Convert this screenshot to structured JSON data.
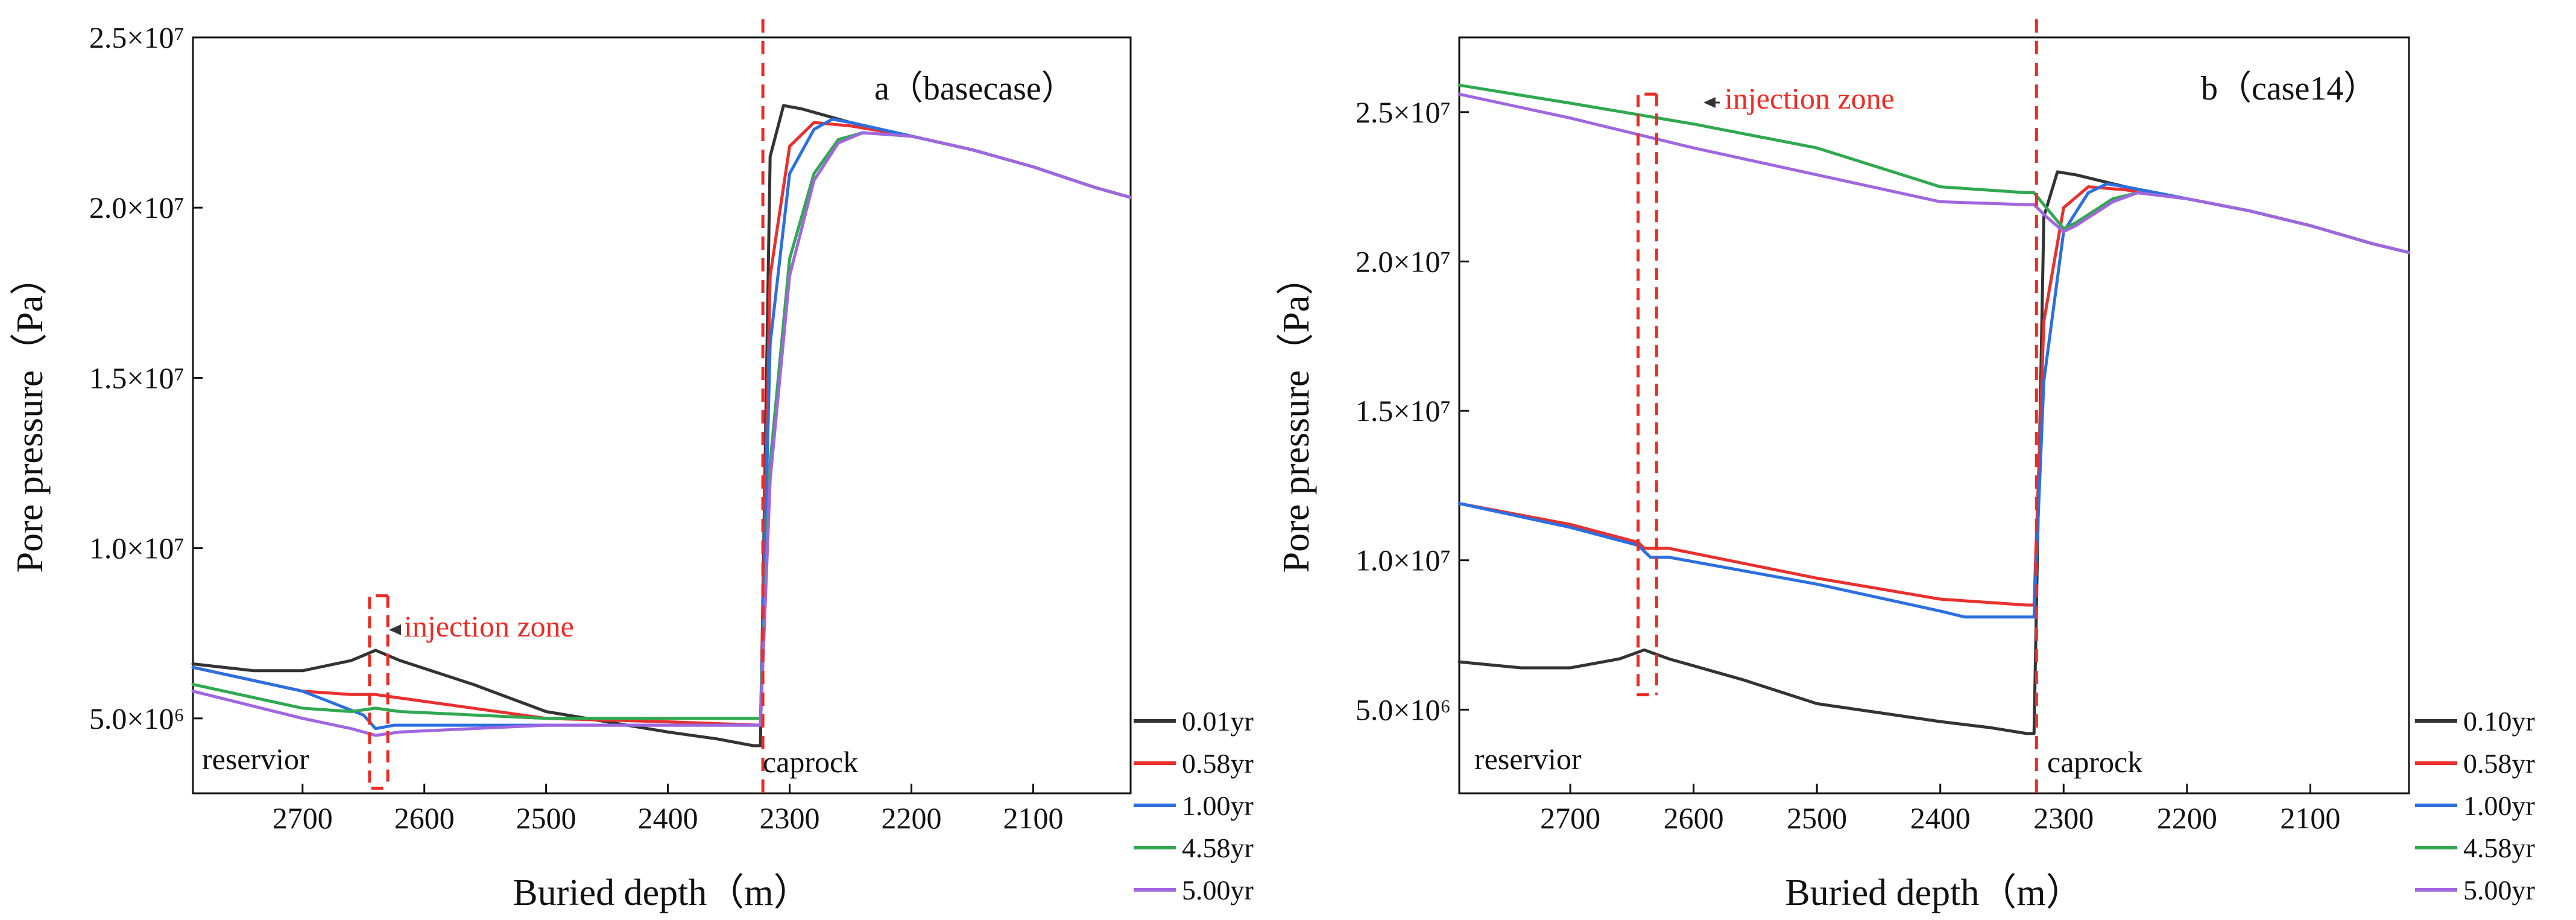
{
  "chart_data": [
    {
      "type": "line",
      "panel": "a",
      "title": "a（basecase）",
      "xlabel": "Buried depth（m）",
      "ylabel": "Pore pressure（Pa）",
      "xlim": [
        2790,
        2020
      ],
      "ylim": [
        2800000,
        25000000
      ],
      "x_ticks": [
        2700,
        2600,
        2500,
        2400,
        2300,
        2200,
        2100
      ],
      "y_ticks": [
        {
          "value": 5000000,
          "label": "5.0×10⁶"
        },
        {
          "value": 10000000,
          "label": "1.0×10⁷"
        },
        {
          "value": 15000000,
          "label": "1.5×10⁷"
        },
        {
          "value": 20000000,
          "label": "2.0×10⁷"
        },
        {
          "value": 25000000,
          "label": "2.5×10⁷"
        }
      ],
      "legend": "right-bottom",
      "series": [
        {
          "name": "0.01yr",
          "color": "#333333",
          "points": [
            [
              2790,
              6600000
            ],
            [
              2740,
              6400000
            ],
            [
              2700,
              6400000
            ],
            [
              2660,
              6700000
            ],
            [
              2640,
              7000000
            ],
            [
              2620,
              6700000
            ],
            [
              2560,
              6000000
            ],
            [
              2500,
              5200000
            ],
            [
              2400,
              4600000
            ],
            [
              2360,
              4400000
            ],
            [
              2330,
              4200000
            ],
            [
              2324,
              4200000
            ],
            [
              2316,
              21500000
            ],
            [
              2305,
              23000000
            ],
            [
              2290,
              22900000
            ],
            [
              2250,
              22500000
            ],
            [
              2200,
              22100000
            ],
            [
              2150,
              21700000
            ],
            [
              2100,
              21200000
            ],
            [
              2050,
              20600000
            ],
            [
              2020,
              20300000
            ]
          ]
        },
        {
          "name": "0.58yr",
          "color": "#e8302e",
          "points": [
            [
              2790,
              6500000
            ],
            [
              2700,
              5800000
            ],
            [
              2660,
              5700000
            ],
            [
              2640,
              5700000
            ],
            [
              2620,
              5600000
            ],
            [
              2500,
              5000000
            ],
            [
              2400,
              4900000
            ],
            [
              2324,
              4800000
            ],
            [
              2316,
              18000000
            ],
            [
              2300,
              21800000
            ],
            [
              2280,
              22500000
            ],
            [
              2250,
              22400000
            ],
            [
              2200,
              22100000
            ],
            [
              2150,
              21700000
            ],
            [
              2100,
              21200000
            ],
            [
              2050,
              20600000
            ],
            [
              2020,
              20300000
            ]
          ]
        },
        {
          "name": "1.00yr",
          "color": "#2b6fe0",
          "points": [
            [
              2790,
              6500000
            ],
            [
              2700,
              5800000
            ],
            [
              2650,
              5100000
            ],
            [
              2640,
              4700000
            ],
            [
              2625,
              4800000
            ],
            [
              2500,
              4800000
            ],
            [
              2400,
              4800000
            ],
            [
              2324,
              4800000
            ],
            [
              2316,
              16000000
            ],
            [
              2300,
              21000000
            ],
            [
              2280,
              22300000
            ],
            [
              2265,
              22600000
            ],
            [
              2250,
              22500000
            ],
            [
              2200,
              22100000
            ],
            [
              2150,
              21700000
            ],
            [
              2100,
              21200000
            ],
            [
              2050,
              20600000
            ],
            [
              2020,
              20300000
            ]
          ]
        },
        {
          "name": "4.58yr",
          "color": "#2fa84f",
          "points": [
            [
              2790,
              6000000
            ],
            [
              2700,
              5300000
            ],
            [
              2660,
              5200000
            ],
            [
              2640,
              5300000
            ],
            [
              2620,
              5200000
            ],
            [
              2500,
              5000000
            ],
            [
              2400,
              5000000
            ],
            [
              2324,
              5000000
            ],
            [
              2316,
              12500000
            ],
            [
              2300,
              18500000
            ],
            [
              2280,
              21000000
            ],
            [
              2260,
              22000000
            ],
            [
              2240,
              22200000
            ],
            [
              2200,
              22100000
            ],
            [
              2150,
              21700000
            ],
            [
              2100,
              21200000
            ],
            [
              2050,
              20600000
            ],
            [
              2020,
              20300000
            ]
          ]
        },
        {
          "name": "5.00yr",
          "color": "#a066e0",
          "points": [
            [
              2790,
              5800000
            ],
            [
              2700,
              5000000
            ],
            [
              2660,
              4700000
            ],
            [
              2640,
              4500000
            ],
            [
              2620,
              4600000
            ],
            [
              2500,
              4800000
            ],
            [
              2400,
              4800000
            ],
            [
              2324,
              4800000
            ],
            [
              2316,
              12000000
            ],
            [
              2300,
              18000000
            ],
            [
              2280,
              20800000
            ],
            [
              2260,
              21900000
            ],
            [
              2240,
              22200000
            ],
            [
              2200,
              22100000
            ],
            [
              2150,
              21700000
            ],
            [
              2100,
              21200000
            ],
            [
              2050,
              20600000
            ],
            [
              2020,
              20300000
            ]
          ]
        }
      ],
      "caprock_depth": 2322,
      "injection_box": {
        "x_start": 2645,
        "x_end": 2630,
        "y_low": 2950000,
        "y_high": 8600000
      },
      "annotations": {
        "injection": "injection zone",
        "reservoir": "reservior",
        "caprock": "caprock"
      }
    },
    {
      "type": "line",
      "panel": "b",
      "title": "b（case14）",
      "xlabel": "Buried depth（m）",
      "ylabel": "Pore pressure（Pa）",
      "xlim": [
        2790,
        2020
      ],
      "ylim": [
        2200000,
        27500000
      ],
      "x_ticks": [
        2700,
        2600,
        2500,
        2400,
        2300,
        2200,
        2100
      ],
      "y_ticks": [
        {
          "value": 5000000,
          "label": "5.0×10⁶"
        },
        {
          "value": 10000000,
          "label": "1.0×10⁷"
        },
        {
          "value": 15000000,
          "label": "1.5×10⁷"
        },
        {
          "value": 20000000,
          "label": "2.0×10⁷"
        },
        {
          "value": 25000000,
          "label": "2.5×10⁷"
        }
      ],
      "legend": "right-bottom",
      "series": [
        {
          "name": "0.10yr",
          "color": "#333333",
          "points": [
            [
              2790,
              6600000
            ],
            [
              2740,
              6400000
            ],
            [
              2700,
              6400000
            ],
            [
              2660,
              6700000
            ],
            [
              2640,
              7000000
            ],
            [
              2620,
              6700000
            ],
            [
              2560,
              6000000
            ],
            [
              2500,
              5200000
            ],
            [
              2400,
              4600000
            ],
            [
              2360,
              4400000
            ],
            [
              2330,
              4200000
            ],
            [
              2324,
              4200000
            ],
            [
              2316,
              21500000
            ],
            [
              2305,
              23000000
            ],
            [
              2290,
              22900000
            ],
            [
              2250,
              22500000
            ],
            [
              2200,
              22100000
            ],
            [
              2150,
              21700000
            ],
            [
              2100,
              21200000
            ],
            [
              2050,
              20600000
            ],
            [
              2020,
              20300000
            ]
          ]
        },
        {
          "name": "0.58yr",
          "color": "#e8302e",
          "points": [
            [
              2790,
              11900000
            ],
            [
              2700,
              11200000
            ],
            [
              2645,
              10600000
            ],
            [
              2640,
              10400000
            ],
            [
              2620,
              10400000
            ],
            [
              2500,
              9400000
            ],
            [
              2400,
              8700000
            ],
            [
              2330,
              8500000
            ],
            [
              2324,
              8500000
            ],
            [
              2316,
              18000000
            ],
            [
              2300,
              21800000
            ],
            [
              2280,
              22500000
            ],
            [
              2250,
              22400000
            ],
            [
              2200,
              22100000
            ],
            [
              2150,
              21700000
            ],
            [
              2100,
              21200000
            ],
            [
              2050,
              20600000
            ],
            [
              2020,
              20300000
            ]
          ]
        },
        {
          "name": "1.00yr",
          "color": "#2b6fe0",
          "points": [
            [
              2790,
              11900000
            ],
            [
              2700,
              11100000
            ],
            [
              2645,
              10500000
            ],
            [
              2635,
              10100000
            ],
            [
              2620,
              10100000
            ],
            [
              2500,
              9200000
            ],
            [
              2400,
              8300000
            ],
            [
              2380,
              8100000
            ],
            [
              2330,
              8100000
            ],
            [
              2324,
              8100000
            ],
            [
              2316,
              16000000
            ],
            [
              2300,
              21000000
            ],
            [
              2280,
              22300000
            ],
            [
              2265,
              22600000
            ],
            [
              2250,
              22500000
            ],
            [
              2200,
              22100000
            ],
            [
              2150,
              21700000
            ],
            [
              2100,
              21200000
            ],
            [
              2050,
              20600000
            ],
            [
              2020,
              20300000
            ]
          ]
        },
        {
          "name": "4.58yr",
          "color": "#2fa84f",
          "points": [
            [
              2790,
              25900000
            ],
            [
              2700,
              25300000
            ],
            [
              2600,
              24600000
            ],
            [
              2500,
              23800000
            ],
            [
              2400,
              22500000
            ],
            [
              2330,
              22300000
            ],
            [
              2324,
              22300000
            ],
            [
              2314,
              21800000
            ],
            [
              2300,
              21100000
            ],
            [
              2290,
              21300000
            ],
            [
              2260,
              22100000
            ],
            [
              2240,
              22300000
            ],
            [
              2200,
              22100000
            ],
            [
              2150,
              21700000
            ],
            [
              2100,
              21200000
            ],
            [
              2050,
              20600000
            ],
            [
              2020,
              20300000
            ]
          ]
        },
        {
          "name": "5.00yr",
          "color": "#a066e0",
          "points": [
            [
              2790,
              25600000
            ],
            [
              2700,
              24800000
            ],
            [
              2600,
              23800000
            ],
            [
              2500,
              22900000
            ],
            [
              2400,
              22000000
            ],
            [
              2330,
              21900000
            ],
            [
              2324,
              21900000
            ],
            [
              2314,
              21500000
            ],
            [
              2300,
              21000000
            ],
            [
              2290,
              21200000
            ],
            [
              2260,
              22000000
            ],
            [
              2240,
              22300000
            ],
            [
              2200,
              22100000
            ],
            [
              2150,
              21700000
            ],
            [
              2100,
              21200000
            ],
            [
              2050,
              20600000
            ],
            [
              2020,
              20300000
            ]
          ]
        }
      ],
      "caprock_depth": 2322,
      "injection_box": {
        "x_start": 2645,
        "x_end": 2630,
        "y_low": 5500000,
        "y_high": 25600000
      },
      "annotations": {
        "injection": "injection zone",
        "reservoir": "reservior",
        "caprock": "caprock"
      }
    }
  ]
}
